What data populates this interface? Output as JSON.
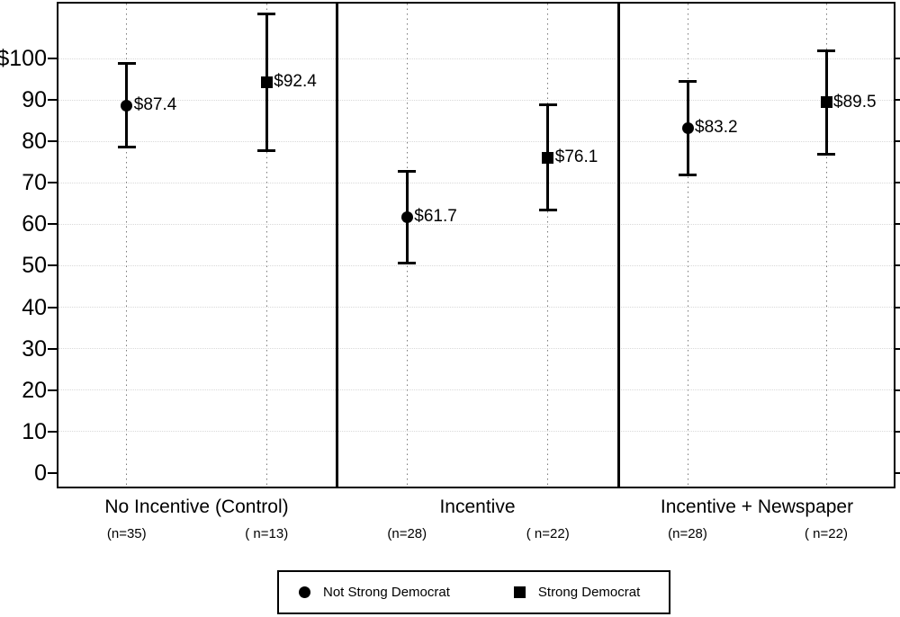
{
  "figure": {
    "background": "#ffffff"
  },
  "chart_data": {
    "type": "errorbar",
    "title": "",
    "xlabel": "",
    "ylabel": "",
    "grid": true,
    "legend_position": "bottom-center",
    "y_axis": {
      "tick_labels": [
        "$100",
        "90",
        "80",
        "70",
        "60",
        "50",
        "40",
        "30",
        "20",
        "10",
        "0"
      ],
      "tick_values": [
        100,
        90,
        80,
        70,
        60,
        50,
        40,
        30,
        20,
        10,
        0
      ],
      "ylim": [
        -4,
        114
      ]
    },
    "panels": [
      {
        "label": "No Incentive (Control)",
        "points": [
          {
            "series": "Not Strong Democrat",
            "marker": "circle",
            "value": 87.4,
            "value_label": "$87.4",
            "ci_low": 78.7,
            "ci_high": 98.8,
            "n_label": "(n=35)"
          },
          {
            "series": "Strong Democrat",
            "marker": "square",
            "value": 92.4,
            "value_label": "$92.4",
            "ci_low": 77.8,
            "ci_high": 110.9,
            "n_label": "( n=13)"
          }
        ]
      },
      {
        "label": "Incentive",
        "points": [
          {
            "series": "Not Strong Democrat",
            "marker": "circle",
            "value": 61.7,
            "value_label": "$61.7",
            "ci_low": 50.7,
            "ci_high": 72.8,
            "n_label": "(n=28)"
          },
          {
            "series": "Strong Democrat",
            "marker": "square",
            "value": 76.1,
            "value_label": "$76.1",
            "ci_low": 63.5,
            "ci_high": 88.8,
            "n_label": "( n=22)"
          }
        ]
      },
      {
        "label": "Incentive + Newspaper",
        "points": [
          {
            "series": "Not Strong Democrat",
            "marker": "circle",
            "value": 83.2,
            "value_label": "$83.2",
            "ci_low": 72.0,
            "ci_high": 94.5,
            "n_label": "(n=28)"
          },
          {
            "series": "Strong Democrat",
            "marker": "square",
            "value": 89.5,
            "value_label": "$89.5",
            "ci_low": 77.0,
            "ci_high": 101.9,
            "n_label": "( n=22)"
          }
        ]
      }
    ],
    "legend": {
      "entries": [
        {
          "marker": "circle",
          "label": "Not Strong Democrat"
        },
        {
          "marker": "square",
          "label": "Strong Democrat"
        }
      ]
    },
    "colors": {
      "marker": "#000000",
      "frame": "#000000",
      "text": "#000000",
      "gridline": "#d9d9d9",
      "guide_dots": "#7a7a7a",
      "background": "#ffffff"
    }
  }
}
